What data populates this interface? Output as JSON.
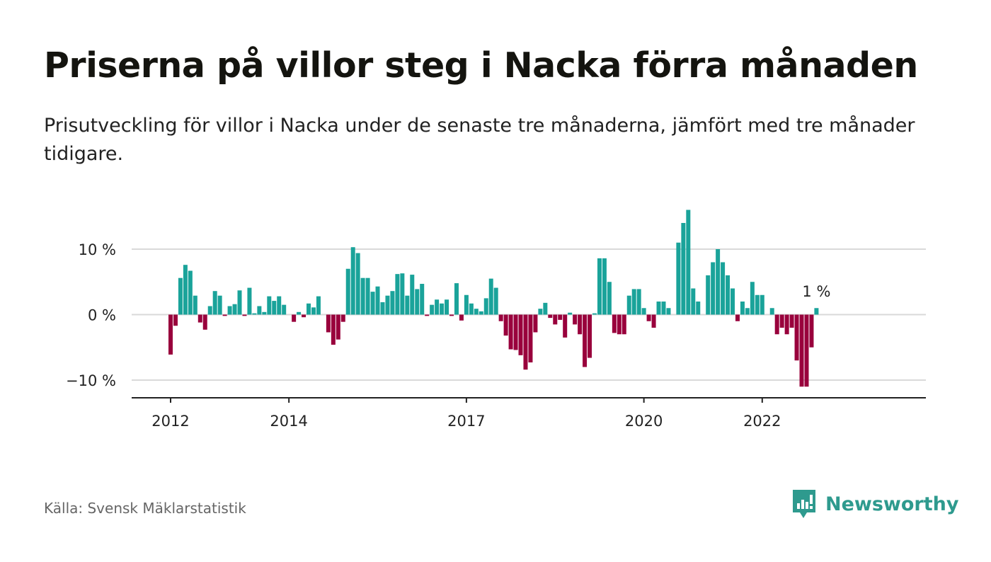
{
  "title": "Priserna på villor steg i Nacka förra månaden",
  "subtitle": "Prisutveckling för villor i Nacka under de senaste tre månaderna, jämfört med tre månader tidigare.",
  "source": "Källa: Svensk Mäklarstatistik",
  "brand": "Newsworthy",
  "colors": {
    "positive": "#1aa39a",
    "negative": "#99003c",
    "grid": "#d9d9d9",
    "axis": "#222222",
    "text": "#222222"
  },
  "chart_data": {
    "type": "bar",
    "x_start": "2012-01",
    "frequency": "monthly",
    "ylim": [
      -12.5,
      17.5
    ],
    "yticks": [
      -10,
      0,
      10
    ],
    "ytick_labels": [
      "−10 %",
      "0 %",
      "10 %"
    ],
    "xticks": [
      "2012-01",
      "2014-01",
      "2017-01",
      "2020-01",
      "2022-01"
    ],
    "xtick_labels": [
      "2012",
      "2014",
      "2017",
      "2020",
      "2022"
    ],
    "last_value_label": "1 %",
    "grid": true,
    "values": [
      -6.1,
      -1.7,
      5.6,
      7.6,
      6.7,
      2.9,
      -1.2,
      -2.3,
      1.3,
      3.6,
      2.9,
      -0.2,
      1.3,
      1.6,
      3.7,
      -0.2,
      4.1,
      0.2,
      1.3,
      0.4,
      2.8,
      2.1,
      2.8,
      1.5,
      0.0,
      -1.1,
      0.4,
      -0.4,
      1.7,
      1.1,
      2.8,
      0.0,
      -2.7,
      -4.6,
      -3.8,
      -1.1,
      7.0,
      10.3,
      9.4,
      5.6,
      5.6,
      3.5,
      4.3,
      1.9,
      2.9,
      3.6,
      6.2,
      6.3,
      2.9,
      6.1,
      3.9,
      4.7,
      -0.2,
      1.5,
      2.3,
      1.7,
      2.3,
      -0.2,
      4.8,
      -0.9,
      3.0,
      1.7,
      0.9,
      0.5,
      2.5,
      5.5,
      4.1,
      -1.0,
      -3.2,
      -5.3,
      -5.4,
      -6.2,
      -8.4,
      -7.3,
      -2.7,
      0.9,
      1.8,
      -0.5,
      -1.5,
      -0.8,
      -3.5,
      0.3,
      -1.5,
      -3.0,
      -8.0,
      -6.6,
      0.2,
      8.6,
      8.6,
      5.0,
      -2.8,
      -3.0,
      -3.0,
      2.9,
      3.9,
      3.9,
      1.0,
      -1.0,
      -2.0,
      2.0,
      2.0,
      1.0,
      0.0,
      11.0,
      14.0,
      16.0,
      4.0,
      2.0,
      0.0,
      6.0,
      8.0,
      10.0,
      8.0,
      6.0,
      4.0,
      -1.0,
      2.0,
      1.0,
      5.0,
      3.0,
      3.0,
      0.0,
      1.0,
      -3.0,
      -2.0,
      -3.0,
      -2.0,
      -7.0,
      -11.0,
      -11.0,
      -5.0,
      1.0
    ]
  }
}
